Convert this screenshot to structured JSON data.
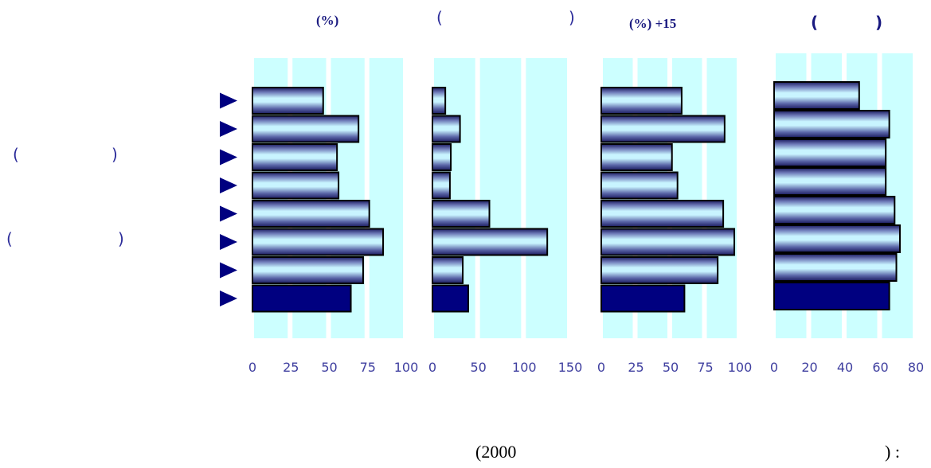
{
  "colors": {
    "band": "#ccffff",
    "bar_gradient_dark": "#1a1a5e",
    "bar_gradient_light": "#c8f4ff",
    "highlight_bar": "#000080",
    "marker": "#000080",
    "tick_label": "#4040a0",
    "title": "#1a1a80"
  },
  "titles": [
    "(%)",
    "(",
    ")",
    "(%) +15",
    "(",
    ")"
  ],
  "row_labels": [
    {
      "open": "(",
      "close": ")"
    },
    {
      "open": "(",
      "close": ")"
    }
  ],
  "source": {
    "open": "(2000",
    "close": ") :"
  },
  "chart_data": [
    {
      "type": "bar",
      "orientation": "horizontal",
      "xlim": [
        0,
        100
      ],
      "ticks": [
        "0",
        "25",
        "50",
        "75",
        "100"
      ],
      "values": [
        46,
        69,
        55,
        56,
        76,
        85,
        72,
        64
      ],
      "highlight_index": 7
    },
    {
      "type": "bar",
      "orientation": "horizontal",
      "xlim": [
        0,
        150
      ],
      "ticks": [
        "0",
        "50",
        "100",
        "150"
      ],
      "values": [
        14,
        30,
        20,
        19,
        62,
        125,
        33,
        39
      ],
      "highlight_index": 7
    },
    {
      "type": "bar",
      "orientation": "horizontal",
      "xlim": [
        0,
        100
      ],
      "ticks": [
        "0",
        "25",
        "50",
        "75",
        "100"
      ],
      "values": [
        58,
        89,
        51,
        55,
        88,
        96,
        84,
        60
      ],
      "highlight_index": 7
    },
    {
      "type": "bar",
      "orientation": "horizontal",
      "xlim": [
        0,
        80
      ],
      "ticks": [
        "0",
        "20",
        "40",
        "60",
        "80"
      ],
      "values": [
        48,
        65,
        63,
        63,
        68,
        71,
        69,
        65
      ],
      "highlight_index": 7
    }
  ]
}
